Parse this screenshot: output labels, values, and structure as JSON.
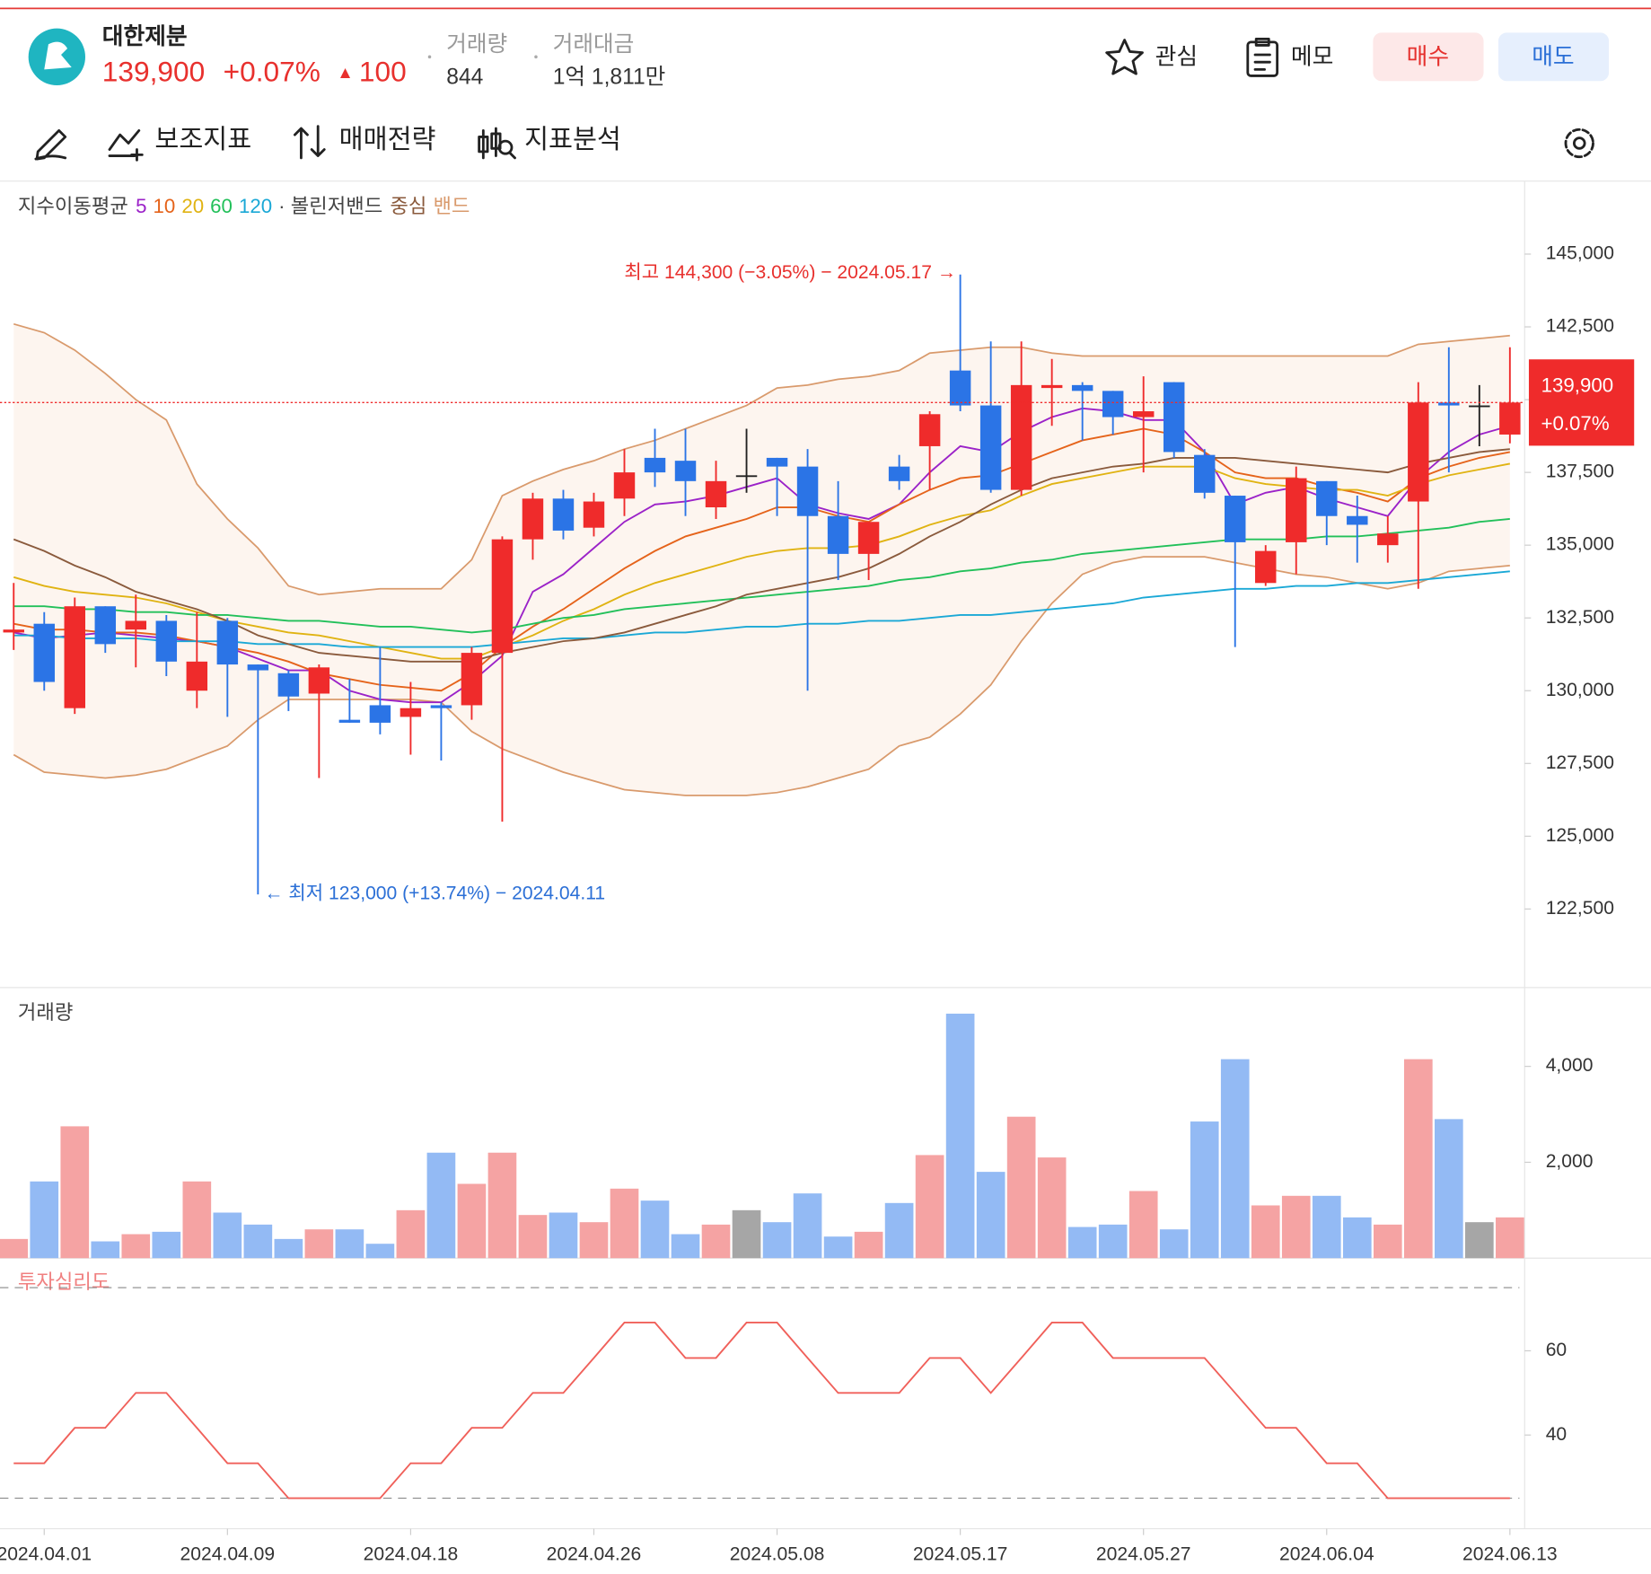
{
  "header": {
    "name": "대한제분",
    "price": "139,900",
    "change_rate": "+0.07%",
    "change_arrow": "▲",
    "change": "100",
    "volume_label": "거래량",
    "volume": "844",
    "amount_label": "거래대금",
    "amount": "1억 1,811만",
    "buttons": [
      "관심",
      "메모",
      "매수",
      "매도"
    ]
  },
  "toolbar": [
    "보조지표",
    "매매전략",
    "지표분석"
  ],
  "chart_data": [
    {
      "type": "candlestick",
      "ma_title": "지수이동평균",
      "band_title": "· 볼린저밴드",
      "categories": [
        null,
        "2024.04.01",
        null,
        null,
        null,
        null,
        null,
        "2024.04.09",
        null,
        null,
        null,
        null,
        null,
        "2024.04.18",
        null,
        null,
        null,
        null,
        null,
        "2024.04.26",
        null,
        null,
        null,
        null,
        null,
        "2024.05.08",
        null,
        null,
        null,
        null,
        null,
        "2024.05.17",
        null,
        null,
        null,
        null,
        null,
        "2024.05.27",
        null,
        null,
        null,
        null,
        null,
        "2024.06.04",
        null,
        null,
        null,
        null,
        null,
        "2024.06.13"
      ],
      "open": [
        132000,
        132300,
        129400,
        132900,
        132100,
        132400,
        130000,
        132400,
        130900,
        130600,
        129900,
        129000,
        129500,
        129100,
        129500,
        129500,
        131300,
        135200,
        136600,
        135600,
        136600,
        138000,
        137900,
        136300,
        137400,
        138000,
        137700,
        136000,
        134700,
        137700,
        138400,
        141000,
        139800,
        136900,
        140400,
        140500,
        140300,
        139400,
        140600,
        138100,
        136700,
        133700,
        135100,
        137200,
        136000,
        135000,
        136500,
        139900,
        139800,
        138800
      ],
      "high": [
        133700,
        132700,
        133200,
        132900,
        133300,
        132600,
        132700,
        132500,
        130900,
        130700,
        130900,
        130400,
        131500,
        130300,
        129600,
        131500,
        135300,
        136800,
        136900,
        136800,
        138300,
        139000,
        139000,
        137900,
        139000,
        138000,
        138300,
        137200,
        135800,
        138100,
        139600,
        144300,
        142000,
        142000,
        141400,
        140600,
        140300,
        140800,
        140600,
        138300,
        136700,
        135000,
        137700,
        137200,
        136700,
        136000,
        140600,
        141800,
        140500,
        141800
      ],
      "low": [
        131400,
        130000,
        129200,
        131300,
        130800,
        130500,
        129400,
        129100,
        123000,
        129300,
        127000,
        128900,
        128500,
        127800,
        127600,
        129000,
        125500,
        134500,
        135200,
        135300,
        136000,
        137000,
        136000,
        135900,
        136800,
        136000,
        130000,
        133800,
        133800,
        136900,
        136900,
        139600,
        136800,
        136700,
        139100,
        138600,
        138800,
        137500,
        138000,
        136600,
        131500,
        133600,
        134000,
        135000,
        134400,
        134400,
        133500,
        137500,
        138400,
        138500
      ],
      "close": [
        132100,
        130300,
        132900,
        131600,
        132400,
        131000,
        131000,
        130900,
        130700,
        129800,
        130800,
        128900,
        128900,
        129400,
        129400,
        131300,
        135200,
        136600,
        135500,
        136500,
        137500,
        137500,
        137200,
        137200,
        137400,
        137700,
        136000,
        134700,
        135800,
        137200,
        139500,
        139800,
        136900,
        140500,
        140500,
        140300,
        139400,
        139600,
        138200,
        136800,
        135100,
        134800,
        137300,
        136000,
        135700,
        135400,
        139900,
        139800,
        139800,
        139900
      ],
      "up_color": "#ef2b2b",
      "down_color": "#2b74e6",
      "flat_color": "#222222",
      "series": [
        {
          "name": "5",
          "color": "#9b22c8",
          "values": [
            132000,
            131800,
            131900,
            132000,
            131900,
            131800,
            131700,
            131500,
            131100,
            130700,
            130700,
            130000,
            129700,
            129600,
            129600,
            130300,
            131200,
            133400,
            134000,
            134900,
            135800,
            136400,
            136500,
            136700,
            137000,
            137300,
            136400,
            136100,
            135900,
            136400,
            137500,
            138400,
            138200,
            138900,
            139400,
            139700,
            139600,
            139300,
            139300,
            138200,
            136400,
            136800,
            137000,
            136600,
            136300,
            136000,
            137300,
            138200,
            138800,
            139100
          ]
        },
        {
          "name": "10",
          "color": "#e5631a",
          "values": [
            132300,
            132100,
            132100,
            132000,
            132000,
            131900,
            131700,
            131500,
            131300,
            131000,
            130600,
            130400,
            130200,
            130100,
            130000,
            130600,
            131500,
            132200,
            132800,
            133500,
            134200,
            134800,
            135300,
            135600,
            135900,
            136300,
            136300,
            136000,
            135800,
            136400,
            136900,
            137300,
            137400,
            137800,
            138200,
            138600,
            138800,
            139000,
            138800,
            138200,
            137500,
            137300,
            137300,
            137000,
            136800,
            136500,
            137300,
            137700,
            138000,
            138200
          ]
        },
        {
          "name": "20",
          "color": "#e0b312",
          "values": [
            133900,
            133600,
            133400,
            133300,
            133200,
            133000,
            132700,
            132400,
            132200,
            132000,
            131900,
            131700,
            131500,
            131300,
            131100,
            131100,
            131500,
            131900,
            132400,
            132800,
            133300,
            133700,
            134000,
            134300,
            134600,
            134800,
            134900,
            134900,
            135000,
            135300,
            135700,
            136000,
            136200,
            136700,
            137100,
            137300,
            137500,
            137700,
            137700,
            137700,
            137300,
            137100,
            137000,
            136900,
            136900,
            136700,
            137100,
            137400,
            137600,
            137800
          ]
        },
        {
          "name": "60",
          "color": "#22c05a",
          "values": [
            132900,
            132900,
            132800,
            132800,
            132700,
            132700,
            132600,
            132600,
            132500,
            132400,
            132400,
            132300,
            132200,
            132200,
            132100,
            132000,
            132100,
            132300,
            132500,
            132600,
            132800,
            132900,
            133000,
            133100,
            133200,
            133300,
            133400,
            133500,
            133600,
            133800,
            133900,
            134100,
            134200,
            134400,
            134500,
            134700,
            134800,
            134900,
            135000,
            135100,
            135200,
            135200,
            135200,
            135300,
            135300,
            135400,
            135500,
            135600,
            135800,
            135900
          ]
        },
        {
          "name": "120",
          "color": "#1aa8d6",
          "values": [
            131900,
            131900,
            131800,
            131800,
            131800,
            131700,
            131700,
            131700,
            131600,
            131600,
            131600,
            131500,
            131500,
            131500,
            131500,
            131500,
            131600,
            131700,
            131800,
            131800,
            131900,
            132000,
            132000,
            132100,
            132200,
            132200,
            132300,
            132300,
            132400,
            132400,
            132500,
            132600,
            132600,
            132700,
            132800,
            132900,
            133000,
            133200,
            133300,
            133400,
            133500,
            133500,
            133600,
            133600,
            133700,
            133700,
            133800,
            133900,
            134000,
            134100
          ]
        },
        {
          "name": "중심",
          "color": "#8a5a3c",
          "values": [
            135200,
            134800,
            134300,
            133900,
            133400,
            133100,
            132800,
            132400,
            131900,
            131600,
            131300,
            131200,
            131100,
            131000,
            131000,
            131000,
            131300,
            131500,
            131700,
            131800,
            132000,
            132300,
            132600,
            132900,
            133300,
            133500,
            133700,
            133900,
            134200,
            134700,
            135300,
            135800,
            136400,
            136900,
            137300,
            137500,
            137700,
            137800,
            138000,
            138000,
            138000,
            137900,
            137800,
            137700,
            137600,
            137500,
            137800,
            138000,
            138200,
            138300
          ]
        }
      ],
      "bands": {
        "name": "밴드",
        "color": "#d99a6c",
        "fill": "#fdf5ef",
        "upper": [
          142600,
          142300,
          141700,
          140900,
          140000,
          139300,
          137100,
          135900,
          134900,
          133600,
          133300,
          133400,
          133500,
          133500,
          133500,
          134500,
          136700,
          137200,
          137600,
          137900,
          138300,
          138600,
          139000,
          139400,
          139800,
          140400,
          140500,
          140700,
          140800,
          141000,
          141600,
          141700,
          141800,
          141800,
          141600,
          141500,
          141500,
          141500,
          141500,
          141500,
          141500,
          141500,
          141500,
          141500,
          141500,
          141500,
          141900,
          142000,
          142100,
          142200
        ],
        "lower": [
          127800,
          127200,
          127100,
          127000,
          127100,
          127300,
          127700,
          128100,
          129000,
          129700,
          129700,
          129700,
          129700,
          129700,
          129600,
          128600,
          128000,
          127600,
          127200,
          126900,
          126600,
          126500,
          126400,
          126400,
          126400,
          126500,
          126700,
          127000,
          127300,
          128100,
          128400,
          129200,
          130200,
          131700,
          133000,
          134000,
          134400,
          134600,
          134600,
          134600,
          134400,
          134200,
          134000,
          133900,
          133700,
          133500,
          133700,
          134100,
          134200,
          134300
        ]
      },
      "ylim": [
        119800,
        147400
      ],
      "yticks": [
        {
          "value": 145000,
          "label": "145,000"
        },
        {
          "value": 142500,
          "label": "142,500"
        },
        {
          "value": 140000,
          "label": "140,000"
        },
        {
          "value": 137500,
          "label": "137,500"
        },
        {
          "value": 135000,
          "label": "135,000"
        },
        {
          "value": 132500,
          "label": "132,500"
        },
        {
          "value": 130000,
          "label": "130,000"
        },
        {
          "value": 127500,
          "label": "127,500"
        },
        {
          "value": 125000,
          "label": "125,000"
        },
        {
          "value": 122500,
          "label": "122,500"
        }
      ],
      "last_price": {
        "value": 139900,
        "label": "139,900"
      },
      "last_change": "+0.07%",
      "high_annotation": {
        "value": 144300,
        "text": "최고 144,300 (−3.05%) − 2024.05.17 →",
        "color": "#e8302d"
      },
      "low_annotation": {
        "value": 123000,
        "text": "← 최저 123,000 (+13.74%) − 2024.04.11",
        "color": "#2b6fd6"
      }
    },
    {
      "type": "bar",
      "title": "거래량",
      "values": [
        400,
        1600,
        2750,
        350,
        500,
        550,
        1600,
        950,
        700,
        400,
        600,
        600,
        300,
        1000,
        2200,
        1550,
        2200,
        900,
        950,
        750,
        1450,
        1200,
        500,
        700,
        1000,
        750,
        1350,
        450,
        550,
        1150,
        2150,
        5100,
        1800,
        2950,
        2100,
        650,
        700,
        1400,
        600,
        2850,
        4150,
        1100,
        1300,
        1300,
        850,
        700,
        4150,
        2900,
        750,
        850
      ],
      "up_color": "#f5a3a3",
      "down_color": "#93baf4",
      "flat_color": "#a6a6a6",
      "ylim": [
        0,
        5600
      ],
      "yticks": [
        {
          "value": 4000,
          "label": "4,000"
        },
        {
          "value": 2000,
          "label": "2,000"
        }
      ]
    },
    {
      "type": "line",
      "title": "투자심리도",
      "color": "#f0605a",
      "values": [
        33.3,
        33.3,
        41.7,
        41.7,
        50,
        50,
        41.7,
        33.3,
        33.3,
        25,
        25,
        25,
        25,
        33.3,
        33.3,
        41.7,
        41.7,
        50,
        50,
        58.3,
        66.7,
        66.7,
        58.3,
        58.3,
        66.7,
        66.7,
        58.3,
        50,
        50,
        50,
        58.3,
        58.3,
        50,
        58.3,
        66.7,
        66.7,
        58.3,
        58.3,
        58.3,
        58.3,
        50,
        41.7,
        41.7,
        33.3,
        33.3,
        25,
        25,
        25,
        25,
        25
      ],
      "ylim": [
        17.75,
        81.75
      ],
      "yticks": [
        60,
        40
      ],
      "levels": [
        75,
        25
      ]
    }
  ]
}
